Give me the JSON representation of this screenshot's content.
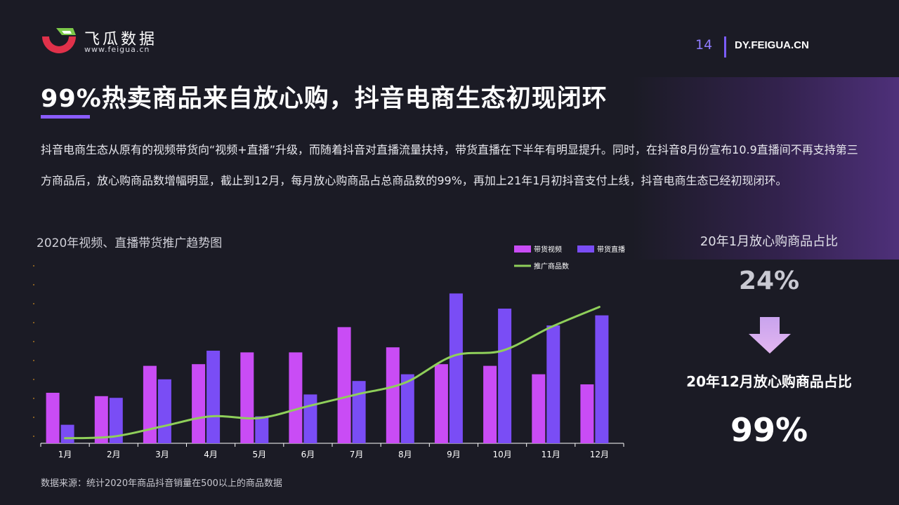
{
  "brand": {
    "name": "飞瓜数据",
    "url": "www.feigua.cn"
  },
  "header": {
    "page_number": "14",
    "site": "DY.FEIGUA.CN"
  },
  "headline": "99%热卖商品来自放心购，抖音电商生态初现闭环",
  "body": "抖音电商生态从原有的视频带货向“视频+直播”升级，而随着抖音对直播流量扶持，带货直播在下半年有明显提升。同时，在抖音8月份宣布10.9直播间不再支持第三方商品后，放心购商品数增幅明显，截止到12月，每月放心购商品占总商品数的99%，再加上21年1月初抖音支付上线，抖音电商生态已经初现闭环。",
  "chart_title": "2020年视频、直播带货推广趋势图",
  "source": "数据来源：统计2020年商品抖音销量在500以上的商品数据",
  "side": {
    "label1": "20年1月放心购商品占比",
    "value1": "24%",
    "label2": "20年12月放心购商品占比",
    "value2": "99%"
  },
  "colors": {
    "video": "#c94cf5",
    "live": "#7a4df5",
    "line": "#8fcf5a",
    "accent": "#8a5cff"
  },
  "chart_data": {
    "type": "bar",
    "title": "2020年视频、直播带货推广趋势图",
    "categories": [
      "1月",
      "2月",
      "3月",
      "4月",
      "5月",
      "6月",
      "7月",
      "8月",
      "9月",
      "10月",
      "11月",
      "12月"
    ],
    "ylim": [
      0,
      100
    ],
    "series": [
      {
        "name": "带货视频",
        "type": "bar",
        "values": [
          30,
          28,
          46,
          47,
          54,
          54,
          69,
          57,
          47,
          46,
          41,
          35
        ]
      },
      {
        "name": "带货直播",
        "type": "bar",
        "values": [
          11,
          27,
          38,
          55,
          16,
          29,
          37,
          41,
          89,
          80,
          70,
          76
        ]
      },
      {
        "name": "推广商品数",
        "type": "line",
        "values": [
          3,
          4,
          10,
          16,
          15,
          22,
          29,
          36,
          52,
          55,
          69,
          81
        ]
      }
    ],
    "legend": "top-right",
    "grid": false
  }
}
